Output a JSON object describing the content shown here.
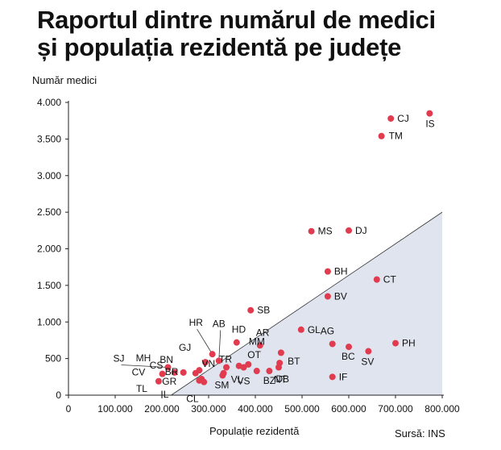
{
  "title_lines": [
    "Raportul dintre numărul de medici",
    "și populația rezidentă pe județe"
  ],
  "source": "Sursă: INS",
  "colors": {
    "point": "#e03b4f",
    "region": "#dfe4ee",
    "region_edge": "#333333",
    "text": "#111111"
  },
  "chart_data": {
    "type": "scatter",
    "title": "Raportul dintre numărul de medici și populația rezidentă pe județe",
    "xlabel": "Populație rezidentă",
    "ylabel": "Număr medici",
    "xlim": [
      0,
      800000
    ],
    "ylim": [
      0,
      4000
    ],
    "xticks": [
      0,
      100000,
      200000,
      300000,
      400000,
      500000,
      600000,
      700000,
      800000
    ],
    "xtick_labels": [
      "0",
      "100.000",
      "200.000",
      "300.000",
      "400.000",
      "500.000",
      "600.000",
      "700.000",
      "800.000"
    ],
    "yticks": [
      0,
      500,
      1000,
      1500,
      2000,
      2500,
      3000,
      3500,
      4000
    ],
    "ytick_labels": [
      "0",
      "500",
      "1.000",
      "1.500",
      "2.000",
      "2.500",
      "3.000",
      "3.500",
      "4.000"
    ],
    "grid": false,
    "shaded_region": {
      "boundary": [
        [
          220000,
          0
        ],
        [
          800000,
          2500
        ]
      ]
    },
    "points": [
      {
        "label": "IS",
        "x": 773000,
        "y": 3850
      },
      {
        "label": "CJ",
        "x": 690000,
        "y": 3780
      },
      {
        "label": "TM",
        "x": 670000,
        "y": 3540
      },
      {
        "label": "MS",
        "x": 520000,
        "y": 2240
      },
      {
        "label": "DJ",
        "x": 600000,
        "y": 2250
      },
      {
        "label": "BH",
        "x": 555000,
        "y": 1690
      },
      {
        "label": "CT",
        "x": 660000,
        "y": 1580
      },
      {
        "label": "BV",
        "x": 555000,
        "y": 1350
      },
      {
        "label": "SB",
        "x": 390000,
        "y": 1160
      },
      {
        "label": "GL",
        "x": 498000,
        "y": 895
      },
      {
        "label": "AG",
        "x": 565000,
        "y": 700
      },
      {
        "label": "PH",
        "x": 700000,
        "y": 710
      },
      {
        "label": "BC",
        "x": 600000,
        "y": 660
      },
      {
        "label": "SV",
        "x": 642000,
        "y": 600
      },
      {
        "label": "IF",
        "x": 565000,
        "y": 250
      },
      {
        "label": "AR",
        "x": 410000,
        "y": 680
      },
      {
        "label": "MM",
        "x": 455000,
        "y": 580
      },
      {
        "label": "BT",
        "x": 452000,
        "y": 440
      },
      {
        "label": "DB",
        "x": 430000,
        "y": 330
      },
      {
        "label": "NT",
        "x": 450000,
        "y": 380
      },
      {
        "label": "HD",
        "x": 360000,
        "y": 720
      },
      {
        "label": "OT",
        "x": 385000,
        "y": 420
      },
      {
        "label": "BZ",
        "x": 403000,
        "y": 330
      },
      {
        "label": "VS",
        "x": 375000,
        "y": 380
      },
      {
        "label": "VL",
        "x": 365000,
        "y": 400
      },
      {
        "label": "AB",
        "x": 322000,
        "y": 470
      },
      {
        "label": "HR",
        "x": 308000,
        "y": 560
      },
      {
        "label": "GJ",
        "x": 293000,
        "y": 450
      },
      {
        "label": "TR",
        "x": 338000,
        "y": 380
      },
      {
        "label": "BN",
        "x": 280000,
        "y": 340
      },
      {
        "label": "VN",
        "x": 332000,
        "y": 300
      },
      {
        "label": "SM",
        "x": 330000,
        "y": 270
      },
      {
        "label": "BR",
        "x": 272000,
        "y": 300
      },
      {
        "label": "CS",
        "x": 246000,
        "y": 310
      },
      {
        "label": "MH",
        "x": 227000,
        "y": 310
      },
      {
        "label": "SJ",
        "x": 213000,
        "y": 380
      },
      {
        "label": "CV",
        "x": 201000,
        "y": 290
      },
      {
        "label": "GR",
        "x": 285000,
        "y": 220
      },
      {
        "label": "CL",
        "x": 290000,
        "y": 180
      },
      {
        "label": "IL",
        "x": 280000,
        "y": 200
      },
      {
        "label": "TL",
        "x": 193000,
        "y": 190
      }
    ]
  }
}
